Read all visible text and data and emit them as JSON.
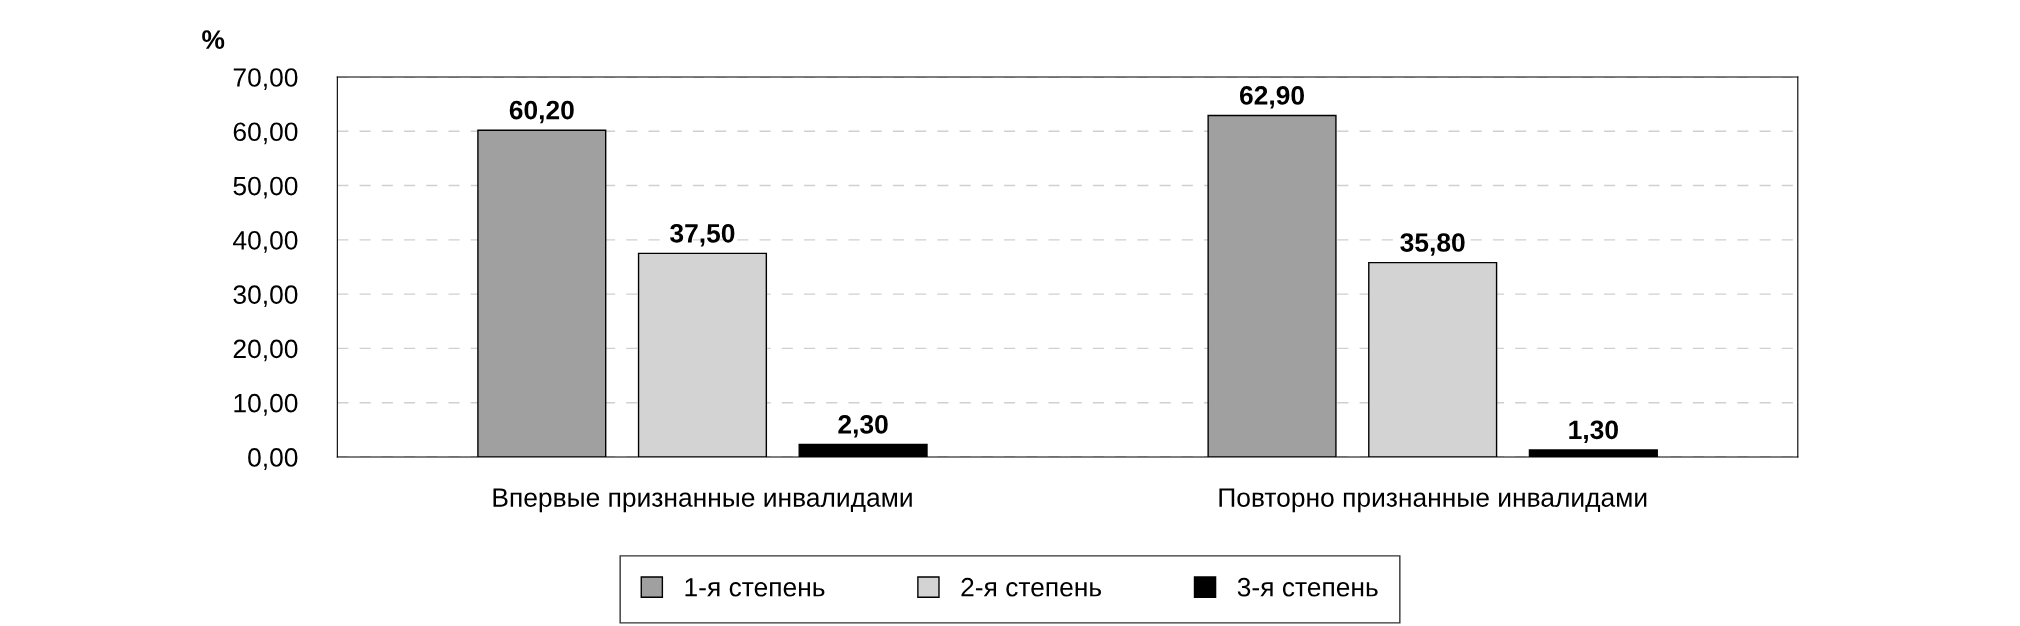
{
  "chart_data": {
    "type": "bar",
    "ylabel": "%",
    "categories": [
      "Впервые признанные инвалидами",
      "Повторно признанные инвалидами"
    ],
    "series": [
      {
        "name": "1-я степень",
        "color": "#a0a0a0",
        "values": [
          60.2,
          62.9
        ],
        "value_labels": [
          "60,20",
          "62,90"
        ]
      },
      {
        "name": "2-я степень",
        "color": "#d3d3d3",
        "values": [
          37.5,
          35.8
        ],
        "value_labels": [
          "37,50",
          "35,80"
        ]
      },
      {
        "name": "3-я степень",
        "color": "#000000",
        "values": [
          2.3,
          1.3
        ],
        "value_labels": [
          "2,30",
          "1,30"
        ]
      }
    ],
    "ylim": [
      0,
      70
    ],
    "yticks": [
      {
        "value": 0,
        "label": "0,00"
      },
      {
        "value": 10,
        "label": "10,00"
      },
      {
        "value": 20,
        "label": "20,00"
      },
      {
        "value": 30,
        "label": "30,00"
      },
      {
        "value": 40,
        "label": "40,00"
      },
      {
        "value": 50,
        "label": "50,00"
      },
      {
        "value": 60,
        "label": "60,00"
      },
      {
        "value": 70,
        "label": "70,00"
      }
    ],
    "grid": "y",
    "legend": "bottom"
  }
}
